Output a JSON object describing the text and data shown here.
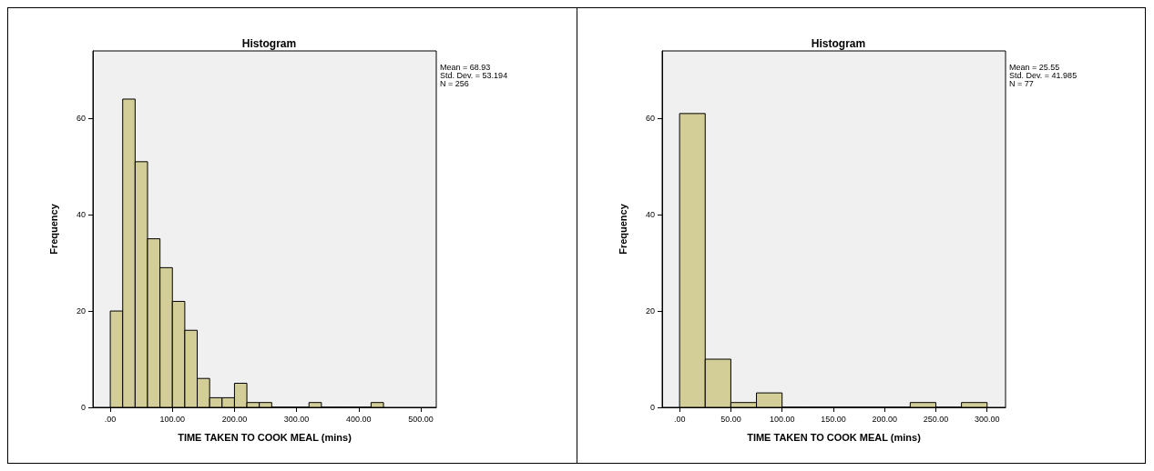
{
  "chart_data": [
    {
      "type": "histogram",
      "title": "Histogram",
      "xlabel": "TIME TAKEN TO COOK MEAL (mins)",
      "ylabel": "Frequency",
      "bins": [
        0,
        20,
        40,
        60,
        80,
        100,
        120,
        140,
        160,
        180,
        200,
        220,
        240,
        260,
        280,
        300,
        320,
        340,
        360,
        380,
        400,
        420,
        440
      ],
      "values": [
        20,
        64,
        51,
        35,
        29,
        22,
        16,
        6,
        2,
        2,
        5,
        1,
        1,
        0,
        0,
        0,
        1,
        0,
        0,
        0,
        0,
        1
      ],
      "color": "#d3ce97",
      "xlim": [
        -28,
        525
      ],
      "xticks": [
        {
          "value": 0,
          "label": ".00"
        },
        {
          "value": 100,
          "label": "100.00"
        },
        {
          "value": 200,
          "label": "200.00"
        },
        {
          "value": 300,
          "label": "300.00"
        },
        {
          "value": 400,
          "label": "400.00"
        },
        {
          "value": 500,
          "label": "500.00"
        }
      ],
      "ylim": [
        0,
        74
      ],
      "yticks": [
        0,
        20,
        40,
        60
      ],
      "annotations": [
        "Mean = 68.93",
        "Std. Dev. = 53.194",
        "N = 256"
      ],
      "grid": false
    },
    {
      "type": "histogram",
      "title": "Histogram",
      "xlabel": "TIME TAKEN TO COOK MEAL (mins)",
      "ylabel": "Frequency",
      "bins": [
        0,
        25,
        50,
        75,
        100,
        125,
        150,
        175,
        200,
        225,
        250,
        275,
        300
      ],
      "values": [
        61,
        10,
        1,
        3,
        0,
        0,
        0,
        0,
        0,
        1,
        0,
        1
      ],
      "color": "#d3ce97",
      "xlim": [
        -17,
        318
      ],
      "xticks": [
        {
          "value": 0,
          "label": ".00"
        },
        {
          "value": 50,
          "label": "50.00"
        },
        {
          "value": 100,
          "label": "100.00"
        },
        {
          "value": 150,
          "label": "150.00"
        },
        {
          "value": 200,
          "label": "200.00"
        },
        {
          "value": 250,
          "label": "250.00"
        },
        {
          "value": 300,
          "label": "300.00"
        }
      ],
      "ylim": [
        0,
        74
      ],
      "yticks": [
        0,
        20,
        40,
        60
      ],
      "annotations": [
        "Mean = 25.55",
        "Std. Dev. = 41.985",
        "N = 77"
      ],
      "grid": false
    }
  ]
}
